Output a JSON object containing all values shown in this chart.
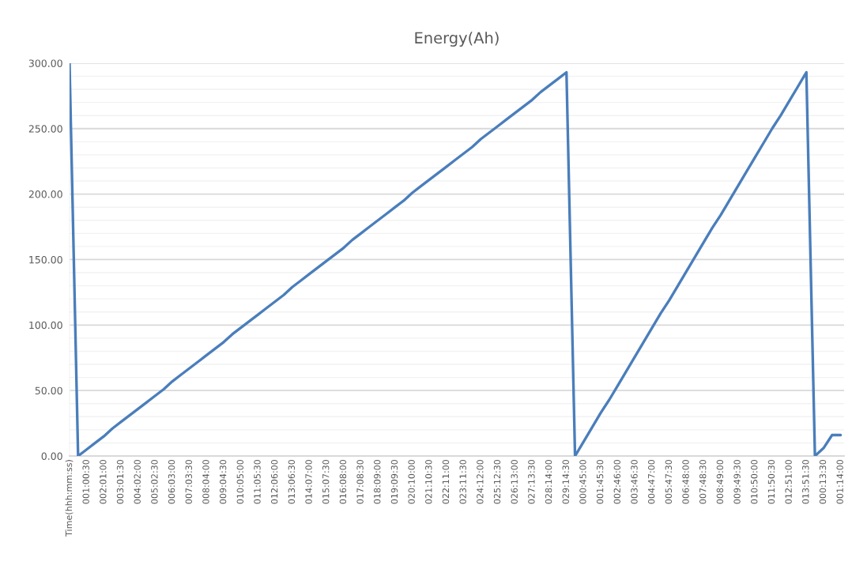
{
  "chart_data": {
    "type": "line",
    "title": "Energy(Ah)",
    "categories": [
      "Time(hhh:mm:ss)",
      null,
      "001:00:30",
      null,
      "002:01:00",
      null,
      "003:01:30",
      null,
      "004:02:00",
      null,
      "005:02:30",
      null,
      "006:03:00",
      null,
      "007:03:30",
      null,
      "008:04:00",
      null,
      "009:04:30",
      null,
      "010:05:00",
      null,
      "011:05:30",
      null,
      "012:06:00",
      null,
      "013:06:30",
      null,
      "014:07:00",
      null,
      "015:07:30",
      null,
      "016:08:00",
      null,
      "017:08:30",
      null,
      "018:09:00",
      null,
      "019:09:30",
      null,
      "020:10:00",
      null,
      "021:10:30",
      null,
      "022:11:00",
      null,
      "023:11:30",
      null,
      "024:12:00",
      null,
      "025:12:30",
      null,
      "026:13:00",
      null,
      "027:13:30",
      null,
      "028:14:00",
      null,
      "029:14:30",
      null,
      "000:45:00",
      null,
      "001:45:30",
      null,
      "002:46:00",
      null,
      "003:46:30",
      null,
      "004:47:00",
      null,
      "005:47:30",
      null,
      "006:48:00",
      null,
      "007:48:30",
      null,
      "008:49:00",
      null,
      "009:49:30",
      null,
      "010:50:00",
      null,
      "011:50:30",
      null,
      "012:51:00",
      null,
      "013:51:30",
      null,
      "000:13:30",
      null,
      "001:14:00"
    ],
    "series": [
      {
        "color": "#4a7ebb",
        "values": [
          300,
          0,
          5,
          10,
          15,
          21,
          26,
          31,
          36,
          41,
          46,
          51,
          57,
          62,
          67,
          72,
          77,
          82,
          87,
          93,
          98,
          103,
          108,
          113,
          118,
          123,
          129,
          134,
          139,
          144,
          149,
          154,
          159,
          165,
          170,
          175,
          180,
          185,
          190,
          195,
          201,
          206,
          211,
          216,
          221,
          226,
          231,
          236,
          242,
          247,
          252,
          257,
          262,
          267,
          272,
          278,
          283,
          288,
          293,
          0,
          11,
          22,
          33,
          43,
          54,
          65,
          76,
          87,
          98,
          109,
          119,
          130,
          141,
          152,
          163,
          174,
          184,
          195,
          206,
          217,
          228,
          239,
          250,
          260,
          271,
          282,
          293,
          0,
          6,
          16,
          16
        ]
      }
    ],
    "ylim": [
      0,
      300
    ],
    "yticks": [
      {
        "value": 0,
        "label": "0.00"
      },
      {
        "value": 10,
        "label": null
      },
      {
        "value": 20,
        "label": null
      },
      {
        "value": 30,
        "label": null
      },
      {
        "value": 40,
        "label": null
      },
      {
        "value": 50,
        "label": "50.00"
      },
      {
        "value": 60,
        "label": null
      },
      {
        "value": 70,
        "label": null
      },
      {
        "value": 80,
        "label": null
      },
      {
        "value": 90,
        "label": null
      },
      {
        "value": 100,
        "label": "100.00"
      },
      {
        "value": 110,
        "label": null
      },
      {
        "value": 120,
        "label": null
      },
      {
        "value": 130,
        "label": null
      },
      {
        "value": 140,
        "label": null
      },
      {
        "value": 150,
        "label": "150.00"
      },
      {
        "value": 160,
        "label": null
      },
      {
        "value": 170,
        "label": null
      },
      {
        "value": 180,
        "label": null
      },
      {
        "value": 190,
        "label": null
      },
      {
        "value": 200,
        "label": "200.00"
      },
      {
        "value": 210,
        "label": null
      },
      {
        "value": 220,
        "label": null
      },
      {
        "value": 230,
        "label": null
      },
      {
        "value": 240,
        "label": null
      },
      {
        "value": 250,
        "label": "250.00"
      },
      {
        "value": 260,
        "label": null
      },
      {
        "value": 270,
        "label": null
      },
      {
        "value": 280,
        "label": null
      },
      {
        "value": 290,
        "label": null
      },
      {
        "value": 300,
        "label": "300.00"
      }
    ],
    "grid": "y",
    "marker": "none",
    "line_style": "solid"
  }
}
